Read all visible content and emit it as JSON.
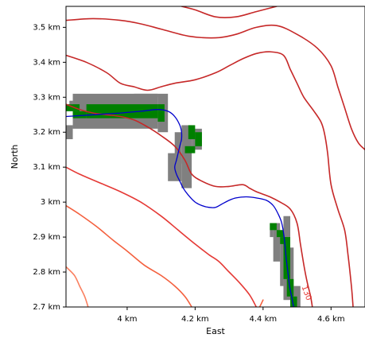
{
  "chart_data": {
    "type": "map",
    "xlabel": "East",
    "ylabel": "North",
    "xlim": [
      3.82,
      4.7
    ],
    "ylim": [
      2.7,
      3.56
    ],
    "x_ticks": [
      {
        "value": 4.0,
        "label": "4 km"
      },
      {
        "value": 4.2,
        "label": "4.2 km"
      },
      {
        "value": 4.4,
        "label": "4.4 km"
      },
      {
        "value": 4.6,
        "label": "4.6 km"
      }
    ],
    "y_ticks": [
      {
        "value": 2.7,
        "label": "2.7 km"
      },
      {
        "value": 2.8,
        "label": "2.8 km"
      },
      {
        "value": 2.9,
        "label": "2.9 km"
      },
      {
        "value": 3.0,
        "label": "3 km"
      },
      {
        "value": 3.1,
        "label": "3.1 km"
      },
      {
        "value": 3.2,
        "label": "3.2 km"
      },
      {
        "value": 3.3,
        "label": "3.3 km"
      },
      {
        "value": 3.4,
        "label": "3.4 km"
      },
      {
        "value": 3.5,
        "label": "3.5 km"
      }
    ],
    "contour_label": {
      "text": "130",
      "x": 4.528,
      "y": 2.74,
      "rotation": 70
    },
    "colors": {
      "grid_cell": "#808080",
      "highlight_cell": "#008000",
      "path": "#0000cc",
      "contour_dark": "#c62828",
      "contour_mid": "#e53935",
      "contour_light": "#f4603e",
      "contour_lightest": "#fa8060"
    },
    "contours": [
      {
        "color": "#c62828",
        "points": [
          [
            4.16,
            3.56
          ],
          [
            4.2,
            3.55
          ],
          [
            4.26,
            3.53
          ],
          [
            4.32,
            3.53
          ],
          [
            4.38,
            3.545
          ],
          [
            4.44,
            3.56
          ]
        ]
      },
      {
        "color": "#c62828",
        "points": [
          [
            3.82,
            3.52
          ],
          [
            3.9,
            3.525
          ],
          [
            3.98,
            3.52
          ],
          [
            4.04,
            3.51
          ],
          [
            4.1,
            3.495
          ],
          [
            4.18,
            3.475
          ],
          [
            4.26,
            3.47
          ],
          [
            4.32,
            3.48
          ],
          [
            4.38,
            3.5
          ],
          [
            4.44,
            3.505
          ],
          [
            4.5,
            3.48
          ],
          [
            4.56,
            3.44
          ],
          [
            4.6,
            3.39
          ],
          [
            4.62,
            3.33
          ],
          [
            4.64,
            3.27
          ],
          [
            4.66,
            3.21
          ],
          [
            4.68,
            3.17
          ],
          [
            4.7,
            3.15
          ]
        ]
      },
      {
        "color": "#c62828",
        "points": [
          [
            3.82,
            3.42
          ],
          [
            3.88,
            3.4
          ],
          [
            3.94,
            3.37
          ],
          [
            3.98,
            3.34
          ],
          [
            4.02,
            3.33
          ],
          [
            4.06,
            3.32
          ],
          [
            4.1,
            3.33
          ],
          [
            4.14,
            3.34
          ],
          [
            4.2,
            3.35
          ],
          [
            4.26,
            3.37
          ],
          [
            4.3,
            3.39
          ],
          [
            4.34,
            3.41
          ],
          [
            4.38,
            3.425
          ],
          [
            4.42,
            3.43
          ],
          [
            4.46,
            3.42
          ],
          [
            4.48,
            3.38
          ],
          [
            4.5,
            3.34
          ],
          [
            4.52,
            3.3
          ],
          [
            4.55,
            3.26
          ],
          [
            4.57,
            3.23
          ],
          [
            4.58,
            3.2
          ],
          [
            4.59,
            3.14
          ],
          [
            4.6,
            3.05
          ],
          [
            4.62,
            2.98
          ],
          [
            4.64,
            2.92
          ],
          [
            4.65,
            2.85
          ],
          [
            4.66,
            2.76
          ],
          [
            4.665,
            2.7
          ]
        ]
      },
      {
        "color": "#c62828",
        "points": [
          [
            3.82,
            3.28
          ],
          [
            3.86,
            3.265
          ],
          [
            3.9,
            3.255
          ],
          [
            3.94,
            3.25
          ],
          [
            3.98,
            3.245
          ],
          [
            4.02,
            3.235
          ],
          [
            4.06,
            3.215
          ],
          [
            4.1,
            3.19
          ],
          [
            4.14,
            3.16
          ],
          [
            4.17,
            3.12
          ],
          [
            4.19,
            3.08
          ],
          [
            4.22,
            3.06
          ],
          [
            4.26,
            3.045
          ],
          [
            4.3,
            3.045
          ],
          [
            4.34,
            3.05
          ],
          [
            4.36,
            3.04
          ],
          [
            4.38,
            3.03
          ],
          [
            4.42,
            3.015
          ],
          [
            4.45,
            3.0
          ],
          [
            4.48,
            2.98
          ],
          [
            4.5,
            2.94
          ],
          [
            4.51,
            2.88
          ],
          [
            4.52,
            2.82
          ],
          [
            4.53,
            2.77
          ],
          [
            4.54,
            2.73
          ],
          [
            4.545,
            2.7
          ]
        ]
      },
      {
        "color": "#e53935",
        "points": [
          [
            3.82,
            3.1
          ],
          [
            3.86,
            3.08
          ],
          [
            3.92,
            3.055
          ],
          [
            3.98,
            3.03
          ],
          [
            4.04,
            3.0
          ],
          [
            4.1,
            2.96
          ],
          [
            4.15,
            2.92
          ],
          [
            4.2,
            2.88
          ],
          [
            4.24,
            2.85
          ],
          [
            4.27,
            2.83
          ],
          [
            4.3,
            2.8
          ],
          [
            4.33,
            2.77
          ],
          [
            4.36,
            2.735
          ],
          [
            4.38,
            2.7
          ]
        ]
      },
      {
        "color": "#f4603e",
        "points": [
          [
            3.82,
            2.99
          ],
          [
            3.86,
            2.965
          ],
          [
            3.91,
            2.93
          ],
          [
            3.96,
            2.89
          ],
          [
            4.0,
            2.86
          ],
          [
            4.05,
            2.82
          ],
          [
            4.1,
            2.79
          ],
          [
            4.14,
            2.76
          ],
          [
            4.17,
            2.73
          ],
          [
            4.19,
            2.7
          ]
        ]
      },
      {
        "color": "#fa8060",
        "points": [
          [
            3.82,
            2.815
          ],
          [
            3.845,
            2.79
          ],
          [
            3.86,
            2.76
          ],
          [
            3.875,
            2.73
          ],
          [
            3.885,
            2.7
          ]
        ]
      },
      {
        "color": "#f4603e",
        "points": [
          [
            4.39,
            2.7
          ],
          [
            4.4,
            2.72
          ]
        ]
      }
    ],
    "gray_cells": [
      [
        3.82,
        3.18,
        0.02,
        0.04
      ],
      [
        3.84,
        3.21,
        0.25,
        0.1
      ],
      [
        3.83,
        3.28,
        0.01,
        0.01
      ],
      [
        4.02,
        3.3,
        0.07,
        0.01
      ],
      [
        4.09,
        3.2,
        0.03,
        0.11
      ],
      [
        4.14,
        3.11,
        0.02,
        0.09
      ],
      [
        4.12,
        3.06,
        0.04,
        0.08
      ],
      [
        4.16,
        3.04,
        0.03,
        0.18
      ],
      [
        4.19,
        3.15,
        0.03,
        0.06
      ],
      [
        4.42,
        2.9,
        0.01,
        0.04
      ],
      [
        4.43,
        2.83,
        0.02,
        0.11
      ],
      [
        4.45,
        2.76,
        0.01,
        0.16
      ],
      [
        4.46,
        2.72,
        0.02,
        0.24
      ],
      [
        4.48,
        2.7,
        0.01,
        0.17
      ],
      [
        4.49,
        2.7,
        0.02,
        0.06
      ]
    ],
    "green_cells": [
      [
        3.82,
        3.26,
        0.04,
        0.02
      ],
      [
        3.84,
        3.24,
        0.04,
        0.02
      ],
      [
        3.88,
        3.24,
        0.21,
        0.04
      ],
      [
        4.09,
        3.23,
        0.02,
        0.03
      ],
      [
        4.09,
        3.26,
        0.02,
        0.02
      ],
      [
        4.18,
        3.18,
        0.02,
        0.04
      ],
      [
        4.2,
        3.16,
        0.02,
        0.04
      ],
      [
        4.17,
        3.14,
        0.03,
        0.02
      ],
      [
        4.42,
        2.92,
        0.02,
        0.02
      ],
      [
        4.44,
        2.9,
        0.02,
        0.02
      ],
      [
        4.45,
        2.88,
        0.02,
        0.02
      ],
      [
        4.46,
        2.78,
        0.02,
        0.12
      ],
      [
        4.47,
        2.73,
        0.02,
        0.05
      ],
      [
        4.48,
        2.7,
        0.02,
        0.03
      ]
    ],
    "path_points": [
      [
        3.82,
        3.245
      ],
      [
        3.9,
        3.25
      ],
      [
        3.98,
        3.255
      ],
      [
        4.04,
        3.26
      ],
      [
        4.09,
        3.265
      ],
      [
        4.12,
        3.26
      ],
      [
        4.14,
        3.245
      ],
      [
        4.155,
        3.22
      ],
      [
        4.16,
        3.2
      ],
      [
        4.16,
        3.18
      ],
      [
        4.155,
        3.16
      ],
      [
        4.15,
        3.14
      ],
      [
        4.145,
        3.12
      ],
      [
        4.14,
        3.1
      ],
      [
        4.145,
        3.08
      ],
      [
        4.155,
        3.06
      ],
      [
        4.165,
        3.04
      ],
      [
        4.18,
        3.02
      ],
      [
        4.2,
        3.0
      ],
      [
        4.22,
        2.99
      ],
      [
        4.24,
        2.985
      ],
      [
        4.26,
        2.985
      ],
      [
        4.28,
        2.995
      ],
      [
        4.3,
        3.005
      ],
      [
        4.32,
        3.012
      ],
      [
        4.35,
        3.015
      ],
      [
        4.38,
        3.012
      ],
      [
        4.41,
        3.005
      ],
      [
        4.43,
        2.99
      ],
      [
        4.445,
        2.965
      ],
      [
        4.455,
        2.94
      ],
      [
        4.462,
        2.9
      ],
      [
        4.468,
        2.84
      ],
      [
        4.473,
        2.8
      ],
      [
        4.478,
        2.76
      ],
      [
        4.484,
        2.73
      ],
      [
        4.49,
        2.7
      ]
    ]
  }
}
